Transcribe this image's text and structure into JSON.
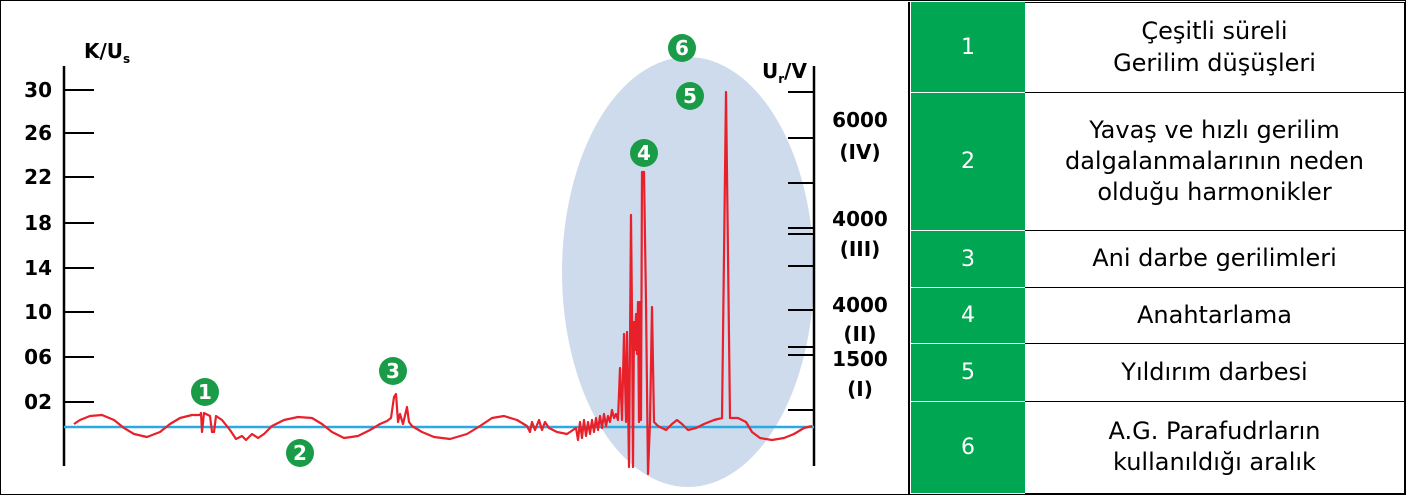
{
  "chart_data": {
    "type": "line",
    "y_left": {
      "label_main": "K/U",
      "label_sub": "s",
      "ticks": [
        "30",
        "26",
        "22",
        "18",
        "14",
        "10",
        "06",
        "02"
      ]
    },
    "y_right": {
      "label_main": "U",
      "label_sub": "r",
      "label_unit": "/V",
      "labels": [
        {
          "value": "6000",
          "category": "(IV)"
        },
        {
          "value": "4000",
          "category": "(III)"
        },
        {
          "value": "4000",
          "category": "(II)"
        },
        {
          "value": "1500",
          "category": "(I)"
        }
      ]
    },
    "markers": [
      "1",
      "2",
      "3",
      "4",
      "5",
      "6"
    ],
    "colors": {
      "signal": "#e8202a",
      "baseline": "#29abe2",
      "badge": "#1a9b48",
      "region": "#c5d5ea",
      "legend_num_bg": "#00a651"
    }
  },
  "legend": [
    {
      "num": "1",
      "lines": [
        "Çeşitli süreli",
        "Gerilim düşüşleri"
      ]
    },
    {
      "num": "2",
      "lines": [
        "Yavaş ve hızlı gerilim",
        "dalgalanmalarının neden",
        "olduğu harmonikler"
      ]
    },
    {
      "num": "3",
      "lines": [
        "Ani darbe gerilimleri"
      ]
    },
    {
      "num": "4",
      "lines": [
        "Anahtarlama"
      ]
    },
    {
      "num": "5",
      "lines": [
        "Yıldırım darbesi"
      ]
    },
    {
      "num": "6",
      "lines": [
        "A.G. Parafudrların",
        "kullanıldığı aralık"
      ]
    }
  ]
}
